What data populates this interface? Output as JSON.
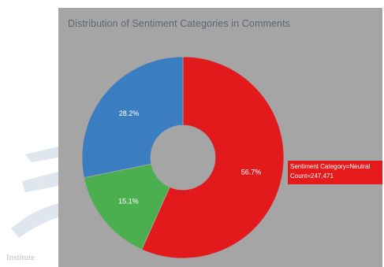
{
  "page": {
    "watermark_text": "Institute",
    "background": "#ffffff",
    "panel_color": "#a5a5a5"
  },
  "chart_data": {
    "type": "pie",
    "title": "Distribution of Sentiment Categories in Comments",
    "hole": true,
    "slices": [
      {
        "label": "Neutral",
        "value": 56.7,
        "text": "56.7%",
        "color": "#e31a1c"
      },
      {
        "label": "",
        "value": 15.1,
        "text": "15.1%",
        "color": "#4caf4f"
      },
      {
        "label": "",
        "value": 28.2,
        "text": "28.2%",
        "color": "#3b7dc1"
      }
    ],
    "hover": {
      "line1": "Sentiment Category=Neutral",
      "line2": "Count=247,471",
      "color": "#e61a1a"
    }
  }
}
